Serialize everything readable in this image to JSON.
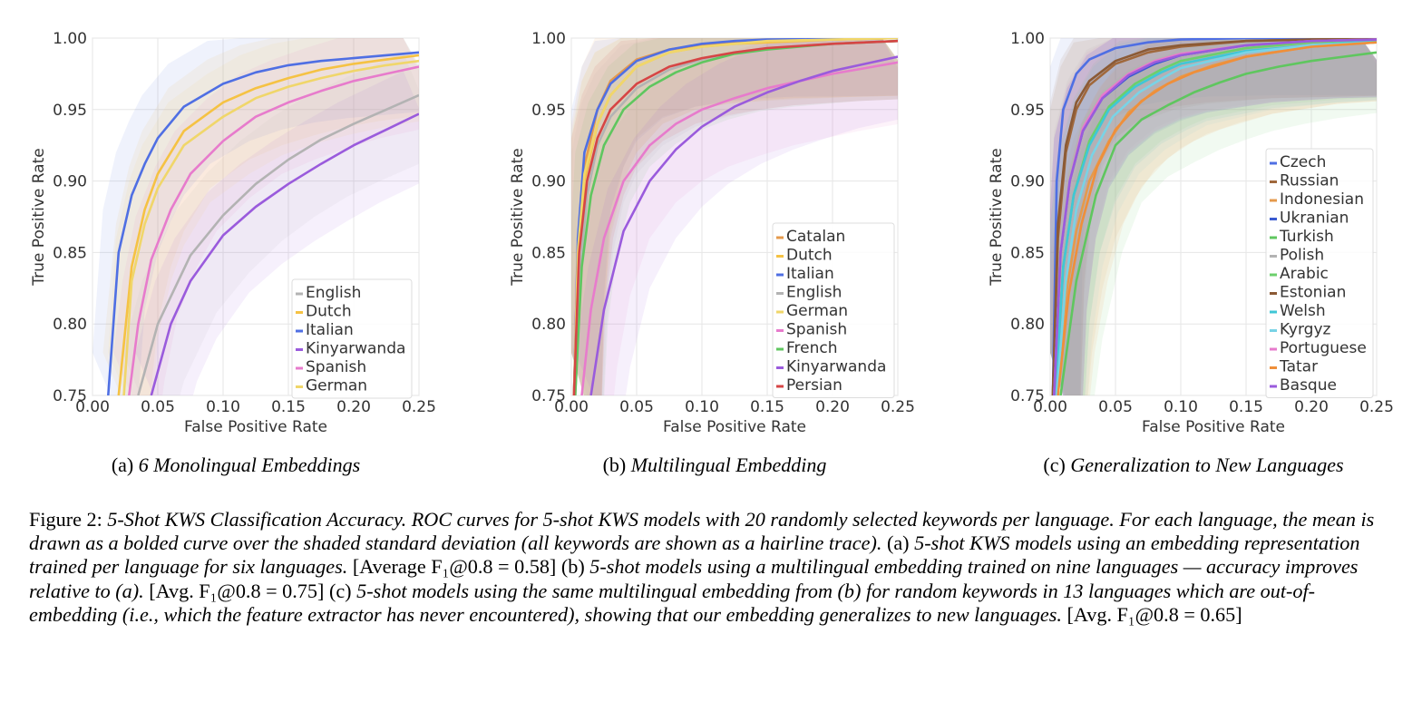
{
  "chart_data": [
    {
      "type": "line",
      "title": "",
      "xlabel": "False Positive Rate",
      "ylabel": "True Positive Rate",
      "xlim": [
        0.0,
        0.25
      ],
      "ylim": [
        0.75,
        1.0
      ],
      "xticks": [
        "0.00",
        "0.05",
        "0.10",
        "0.15",
        "0.20",
        "0.25"
      ],
      "yticks": [
        "0.75",
        "0.80",
        "0.85",
        "0.90",
        "0.95",
        "1.00"
      ],
      "grid": true,
      "legend_position": "lower-right",
      "caption_label": "(a)",
      "caption_title": "6 Monolingual Embeddings",
      "series": [
        {
          "name": "English",
          "color": "#b3b3b3",
          "x": [
            0.035,
            0.05,
            0.075,
            0.1,
            0.125,
            0.15,
            0.175,
            0.2,
            0.225,
            0.25
          ],
          "y": [
            0.75,
            0.8,
            0.848,
            0.876,
            0.898,
            0.915,
            0.929,
            0.94,
            0.95,
            0.96
          ]
        },
        {
          "name": "Dutch",
          "color": "#f5c244",
          "x": [
            0.02,
            0.03,
            0.04,
            0.05,
            0.07,
            0.1,
            0.125,
            0.15,
            0.175,
            0.2,
            0.225,
            0.25
          ],
          "y": [
            0.75,
            0.84,
            0.88,
            0.905,
            0.935,
            0.955,
            0.965,
            0.972,
            0.978,
            0.982,
            0.985,
            0.988
          ]
        },
        {
          "name": "Italian",
          "color": "#4f6fe3",
          "x": [
            0.012,
            0.02,
            0.03,
            0.04,
            0.05,
            0.07,
            0.1,
            0.125,
            0.15,
            0.175,
            0.2,
            0.225,
            0.25
          ],
          "y": [
            0.75,
            0.85,
            0.89,
            0.912,
            0.93,
            0.952,
            0.968,
            0.976,
            0.981,
            0.984,
            0.986,
            0.988,
            0.99
          ]
        },
        {
          "name": "Kinyarwanda",
          "color": "#9a5bdc",
          "x": [
            0.045,
            0.06,
            0.075,
            0.1,
            0.125,
            0.15,
            0.175,
            0.2,
            0.225,
            0.25
          ],
          "y": [
            0.75,
            0.8,
            0.83,
            0.862,
            0.882,
            0.898,
            0.912,
            0.925,
            0.936,
            0.947
          ]
        },
        {
          "name": "Spanish",
          "color": "#e77bcc",
          "x": [
            0.028,
            0.035,
            0.045,
            0.06,
            0.075,
            0.1,
            0.125,
            0.15,
            0.175,
            0.2,
            0.225,
            0.25
          ],
          "y": [
            0.75,
            0.8,
            0.845,
            0.88,
            0.905,
            0.928,
            0.945,
            0.955,
            0.963,
            0.97,
            0.975,
            0.98
          ]
        },
        {
          "name": "German",
          "color": "#f0d66a",
          "x": [
            0.024,
            0.03,
            0.04,
            0.05,
            0.07,
            0.1,
            0.125,
            0.15,
            0.175,
            0.2,
            0.225,
            0.25
          ],
          "y": [
            0.75,
            0.83,
            0.87,
            0.895,
            0.925,
            0.945,
            0.958,
            0.966,
            0.972,
            0.977,
            0.981,
            0.984
          ]
        }
      ]
    },
    {
      "type": "line",
      "title": "",
      "xlabel": "False Positive Rate",
      "ylabel": "True Positive Rate",
      "xlim": [
        0.0,
        0.25
      ],
      "ylim": [
        0.75,
        1.0
      ],
      "xticks": [
        "0.00",
        "0.05",
        "0.10",
        "0.15",
        "0.20",
        "0.25"
      ],
      "yticks": [
        "0.75",
        "0.80",
        "0.85",
        "0.90",
        "0.95",
        "1.00"
      ],
      "grid": true,
      "legend_position": "lower-right",
      "caption_label": "(b)",
      "caption_title": "Multilingual Embedding",
      "series": [
        {
          "name": "Catalan",
          "color": "#e59a4c",
          "x": [
            0.002,
            0.005,
            0.01,
            0.02,
            0.03,
            0.05,
            0.075,
            0.1,
            0.125,
            0.15,
            0.2,
            0.25
          ],
          "y": [
            0.75,
            0.85,
            0.91,
            0.95,
            0.97,
            0.985,
            0.992,
            0.995,
            0.997,
            0.998,
            0.999,
            1.0
          ]
        },
        {
          "name": "Dutch",
          "color": "#f5c244",
          "x": [
            0.002,
            0.005,
            0.01,
            0.02,
            0.03,
            0.05,
            0.075,
            0.1,
            0.125,
            0.15,
            0.2,
            0.25
          ],
          "y": [
            0.75,
            0.84,
            0.9,
            0.94,
            0.96,
            0.98,
            0.99,
            0.994,
            0.996,
            0.997,
            0.999,
            1.0
          ]
        },
        {
          "name": "Italian",
          "color": "#4f6fe3",
          "x": [
            0.002,
            0.005,
            0.01,
            0.02,
            0.03,
            0.05,
            0.075,
            0.1,
            0.125,
            0.15,
            0.2,
            0.25
          ],
          "y": [
            0.75,
            0.86,
            0.92,
            0.95,
            0.968,
            0.984,
            0.992,
            0.996,
            0.998,
            0.999,
            0.9995,
            1.0
          ]
        },
        {
          "name": "English",
          "color": "#b3b3b3",
          "x": [
            0.003,
            0.007,
            0.012,
            0.02,
            0.03,
            0.05,
            0.075,
            0.1,
            0.125,
            0.15,
            0.2,
            0.25
          ],
          "y": [
            0.75,
            0.84,
            0.89,
            0.925,
            0.945,
            0.965,
            0.978,
            0.985,
            0.99,
            0.993,
            0.996,
            0.998
          ]
        },
        {
          "name": "German",
          "color": "#f0d66a",
          "x": [
            0.002,
            0.005,
            0.01,
            0.02,
            0.03,
            0.05,
            0.075,
            0.1,
            0.125,
            0.15,
            0.2,
            0.25
          ],
          "y": [
            0.75,
            0.85,
            0.905,
            0.94,
            0.96,
            0.98,
            0.99,
            0.994,
            0.996,
            0.998,
            0.999,
            1.0
          ]
        },
        {
          "name": "Spanish",
          "color": "#e77bcc",
          "x": [
            0.008,
            0.015,
            0.025,
            0.04,
            0.06,
            0.08,
            0.1,
            0.125,
            0.15,
            0.175,
            0.2,
            0.225,
            0.25
          ],
          "y": [
            0.75,
            0.81,
            0.86,
            0.9,
            0.925,
            0.94,
            0.95,
            0.958,
            0.965,
            0.97,
            0.975,
            0.979,
            0.983
          ]
        },
        {
          "name": "French",
          "color": "#5fc65f",
          "x": [
            0.003,
            0.008,
            0.015,
            0.025,
            0.04,
            0.06,
            0.08,
            0.1,
            0.125,
            0.15,
            0.2,
            0.25
          ],
          "y": [
            0.75,
            0.84,
            0.89,
            0.925,
            0.95,
            0.966,
            0.976,
            0.983,
            0.989,
            0.992,
            0.996,
            0.998
          ]
        },
        {
          "name": "Kinyarwanda",
          "color": "#9a5bdc",
          "x": [
            0.015,
            0.025,
            0.04,
            0.06,
            0.08,
            0.1,
            0.125,
            0.15,
            0.175,
            0.2,
            0.225,
            0.25
          ],
          "y": [
            0.75,
            0.81,
            0.865,
            0.9,
            0.922,
            0.938,
            0.952,
            0.962,
            0.97,
            0.977,
            0.982,
            0.987
          ]
        },
        {
          "name": "Persian",
          "color": "#d64545",
          "x": [
            0.002,
            0.006,
            0.012,
            0.02,
            0.03,
            0.05,
            0.075,
            0.1,
            0.125,
            0.15,
            0.2,
            0.25
          ],
          "y": [
            0.75,
            0.85,
            0.9,
            0.93,
            0.95,
            0.968,
            0.98,
            0.986,
            0.99,
            0.993,
            0.996,
            0.998
          ]
        }
      ]
    },
    {
      "type": "line",
      "title": "",
      "xlabel": "False Positive Rate",
      "ylabel": "True Positive Rate",
      "xlim": [
        0.0,
        0.25
      ],
      "ylim": [
        0.75,
        1.0
      ],
      "xticks": [
        "0.00",
        "0.05",
        "0.10",
        "0.15",
        "0.20",
        "0.25"
      ],
      "yticks": [
        "0.75",
        "0.80",
        "0.85",
        "0.90",
        "0.95",
        "1.00"
      ],
      "grid": true,
      "legend_position": "center-right",
      "caption_label": "(c)",
      "caption_title": "Generalization to New Languages",
      "series": [
        {
          "name": "Czech",
          "color": "#4f6fe3",
          "x": [
            0.002,
            0.005,
            0.01,
            0.02,
            0.03,
            0.05,
            0.075,
            0.1,
            0.15,
            0.2,
            0.25
          ],
          "y": [
            0.75,
            0.9,
            0.95,
            0.975,
            0.985,
            0.993,
            0.997,
            0.999,
            1.0,
            1.0,
            1.0
          ]
        },
        {
          "name": "Russian",
          "color": "#a0683c",
          "x": [
            0.002,
            0.006,
            0.012,
            0.02,
            0.03,
            0.05,
            0.075,
            0.1,
            0.15,
            0.2,
            0.25
          ],
          "y": [
            0.75,
            0.86,
            0.92,
            0.95,
            0.967,
            0.982,
            0.99,
            0.994,
            0.998,
            0.999,
            1.0
          ]
        },
        {
          "name": "Indonesian",
          "color": "#e59a4c",
          "x": [
            0.005,
            0.012,
            0.02,
            0.03,
            0.045,
            0.06,
            0.08,
            0.1,
            0.125,
            0.15,
            0.2,
            0.25
          ],
          "y": [
            0.75,
            0.82,
            0.865,
            0.9,
            0.928,
            0.948,
            0.963,
            0.973,
            0.981,
            0.987,
            0.994,
            0.997
          ]
        },
        {
          "name": "Ukranian",
          "color": "#3a5bd0",
          "x": [
            0.003,
            0.008,
            0.015,
            0.025,
            0.04,
            0.06,
            0.08,
            0.1,
            0.15,
            0.2,
            0.25
          ],
          "y": [
            0.75,
            0.85,
            0.9,
            0.935,
            0.958,
            0.973,
            0.982,
            0.988,
            0.995,
            0.998,
            0.999
          ]
        },
        {
          "name": "Turkish",
          "color": "#5fc65f",
          "x": [
            0.008,
            0.02,
            0.035,
            0.05,
            0.07,
            0.09,
            0.11,
            0.13,
            0.15,
            0.175,
            0.2,
            0.225,
            0.25
          ],
          "y": [
            0.75,
            0.83,
            0.89,
            0.925,
            0.943,
            0.953,
            0.962,
            0.969,
            0.975,
            0.98,
            0.984,
            0.987,
            0.99
          ]
        },
        {
          "name": "Polish",
          "color": "#b3b3b3",
          "x": [
            0.003,
            0.008,
            0.015,
            0.025,
            0.04,
            0.06,
            0.08,
            0.1,
            0.15,
            0.2,
            0.25
          ],
          "y": [
            0.75,
            0.85,
            0.905,
            0.94,
            0.962,
            0.977,
            0.985,
            0.99,
            0.996,
            0.998,
            0.999
          ]
        },
        {
          "name": "Arabic",
          "color": "#6ccf6c",
          "x": [
            0.004,
            0.01,
            0.018,
            0.03,
            0.045,
            0.065,
            0.085,
            0.1,
            0.15,
            0.2,
            0.25
          ],
          "y": [
            0.75,
            0.84,
            0.89,
            0.928,
            0.952,
            0.968,
            0.978,
            0.984,
            0.993,
            0.997,
            0.999
          ]
        },
        {
          "name": "Estonian",
          "color": "#8b5a35",
          "x": [
            0.002,
            0.006,
            0.012,
            0.02,
            0.03,
            0.05,
            0.075,
            0.1,
            0.15,
            0.2,
            0.25
          ],
          "y": [
            0.75,
            0.87,
            0.925,
            0.955,
            0.97,
            0.984,
            0.992,
            0.995,
            0.998,
            0.999,
            1.0
          ]
        },
        {
          "name": "Welsh",
          "color": "#3fc7d6",
          "x": [
            0.004,
            0.01,
            0.018,
            0.03,
            0.045,
            0.065,
            0.085,
            0.1,
            0.15,
            0.2,
            0.25
          ],
          "y": [
            0.75,
            0.84,
            0.89,
            0.925,
            0.95,
            0.966,
            0.976,
            0.982,
            0.991,
            0.995,
            0.998
          ]
        },
        {
          "name": "Kyrgyz",
          "color": "#79d3e6",
          "x": [
            0.005,
            0.012,
            0.02,
            0.032,
            0.048,
            0.068,
            0.088,
            0.1,
            0.15,
            0.2,
            0.25
          ],
          "y": [
            0.75,
            0.83,
            0.88,
            0.918,
            0.945,
            0.962,
            0.973,
            0.979,
            0.99,
            0.995,
            0.997
          ]
        },
        {
          "name": "Portuguese",
          "color": "#e77bcc",
          "x": [
            0.003,
            0.008,
            0.015,
            0.025,
            0.04,
            0.06,
            0.08,
            0.1,
            0.15,
            0.2,
            0.25
          ],
          "y": [
            0.75,
            0.85,
            0.9,
            0.937,
            0.96,
            0.975,
            0.984,
            0.989,
            0.995,
            0.998,
            0.999
          ]
        },
        {
          "name": "Tatar",
          "color": "#ef8f3a",
          "x": [
            0.006,
            0.014,
            0.024,
            0.036,
            0.05,
            0.07,
            0.09,
            0.11,
            0.15,
            0.2,
            0.25
          ],
          "y": [
            0.75,
            0.82,
            0.87,
            0.91,
            0.936,
            0.956,
            0.968,
            0.976,
            0.987,
            0.994,
            0.997
          ]
        },
        {
          "name": "Basque",
          "color": "#9a5bdc",
          "x": [
            0.003,
            0.008,
            0.015,
            0.025,
            0.04,
            0.06,
            0.08,
            0.1,
            0.15,
            0.2,
            0.25
          ],
          "y": [
            0.75,
            0.85,
            0.9,
            0.935,
            0.958,
            0.974,
            0.983,
            0.988,
            0.995,
            0.998,
            0.999
          ]
        }
      ]
    }
  ],
  "caption": {
    "prefix": "Figure 2: ",
    "title": "5-Shot KWS Classification Accuracy.",
    "s1": " ROC curves for 5-shot KWS models with 20 randomly selected keywords per language. For each language, the mean is drawn as a bolded curve over the shaded standard deviation (all keywords are shown as a hairline trace).",
    "a_label": " (a) ",
    "a_text": "5-shot KWS models using an embedding representation trained per language for six languages.",
    "a_result": " [Average F₁@0.8 = 0.58]",
    "b_label": " (b) ",
    "b_text": "5-shot models using a multilingual embedding trained on nine languages — accuracy improves relative to (a).",
    "b_result": " [Avg. F₁@0.8 = 0.75]",
    "c_label": " (c) ",
    "c_text": "5-shot models using the same multilingual embedding from (b) for random keywords in 13 languages which are out-of-embedding (i.e., which the feature extractor has never encountered), showing that our embedding generalizes to new languages.",
    "c_result": " [Avg. F₁@0.8 = 0.65]"
  }
}
